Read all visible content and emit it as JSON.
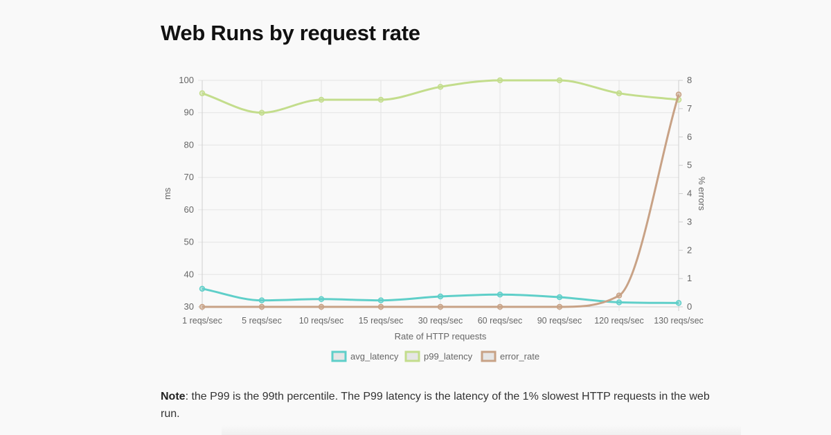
{
  "page": {
    "title": "Web Runs by request rate",
    "note_label": "Note",
    "note_text": ": the P99 is the 99th percentile. The P99 latency is the latency of the 1% slowest HTTP requests in the web run."
  },
  "chart_data": {
    "type": "line",
    "title": "",
    "xlabel": "Rate of HTTP requests",
    "ylabel": "ms",
    "y2label": "% errors",
    "categories": [
      "1 reqs/sec",
      "5 reqs/sec",
      "10 reqs/sec",
      "15 reqs/sec",
      "30 reqs/sec",
      "60 reqs/sec",
      "90 reqs/sec",
      "120 reqs/sec",
      "130 reqs/sec"
    ],
    "ylim": [
      30,
      100
    ],
    "yticks": [
      30,
      40,
      50,
      60,
      70,
      80,
      90,
      100
    ],
    "y2lim": [
      0,
      8
    ],
    "y2ticks": [
      0,
      1,
      2,
      3,
      4,
      5,
      6,
      7,
      8
    ],
    "grid": true,
    "legend_position": "bottom",
    "series": [
      {
        "name": "avg_latency",
        "axis": "left",
        "color": "#5fcfc9",
        "values": [
          35.6,
          32,
          32.4,
          32,
          33.2,
          33.8,
          33,
          31.4,
          31.2
        ]
      },
      {
        "name": "p99_latency",
        "axis": "left",
        "color": "#c3dd8c",
        "values": [
          96,
          90,
          94,
          94,
          98,
          100,
          100,
          96,
          94
        ]
      },
      {
        "name": "error_rate",
        "axis": "right",
        "color": "#c8a286",
        "values": [
          0,
          0,
          0,
          0,
          0,
          0,
          0,
          0.4,
          7.5
        ]
      }
    ]
  }
}
